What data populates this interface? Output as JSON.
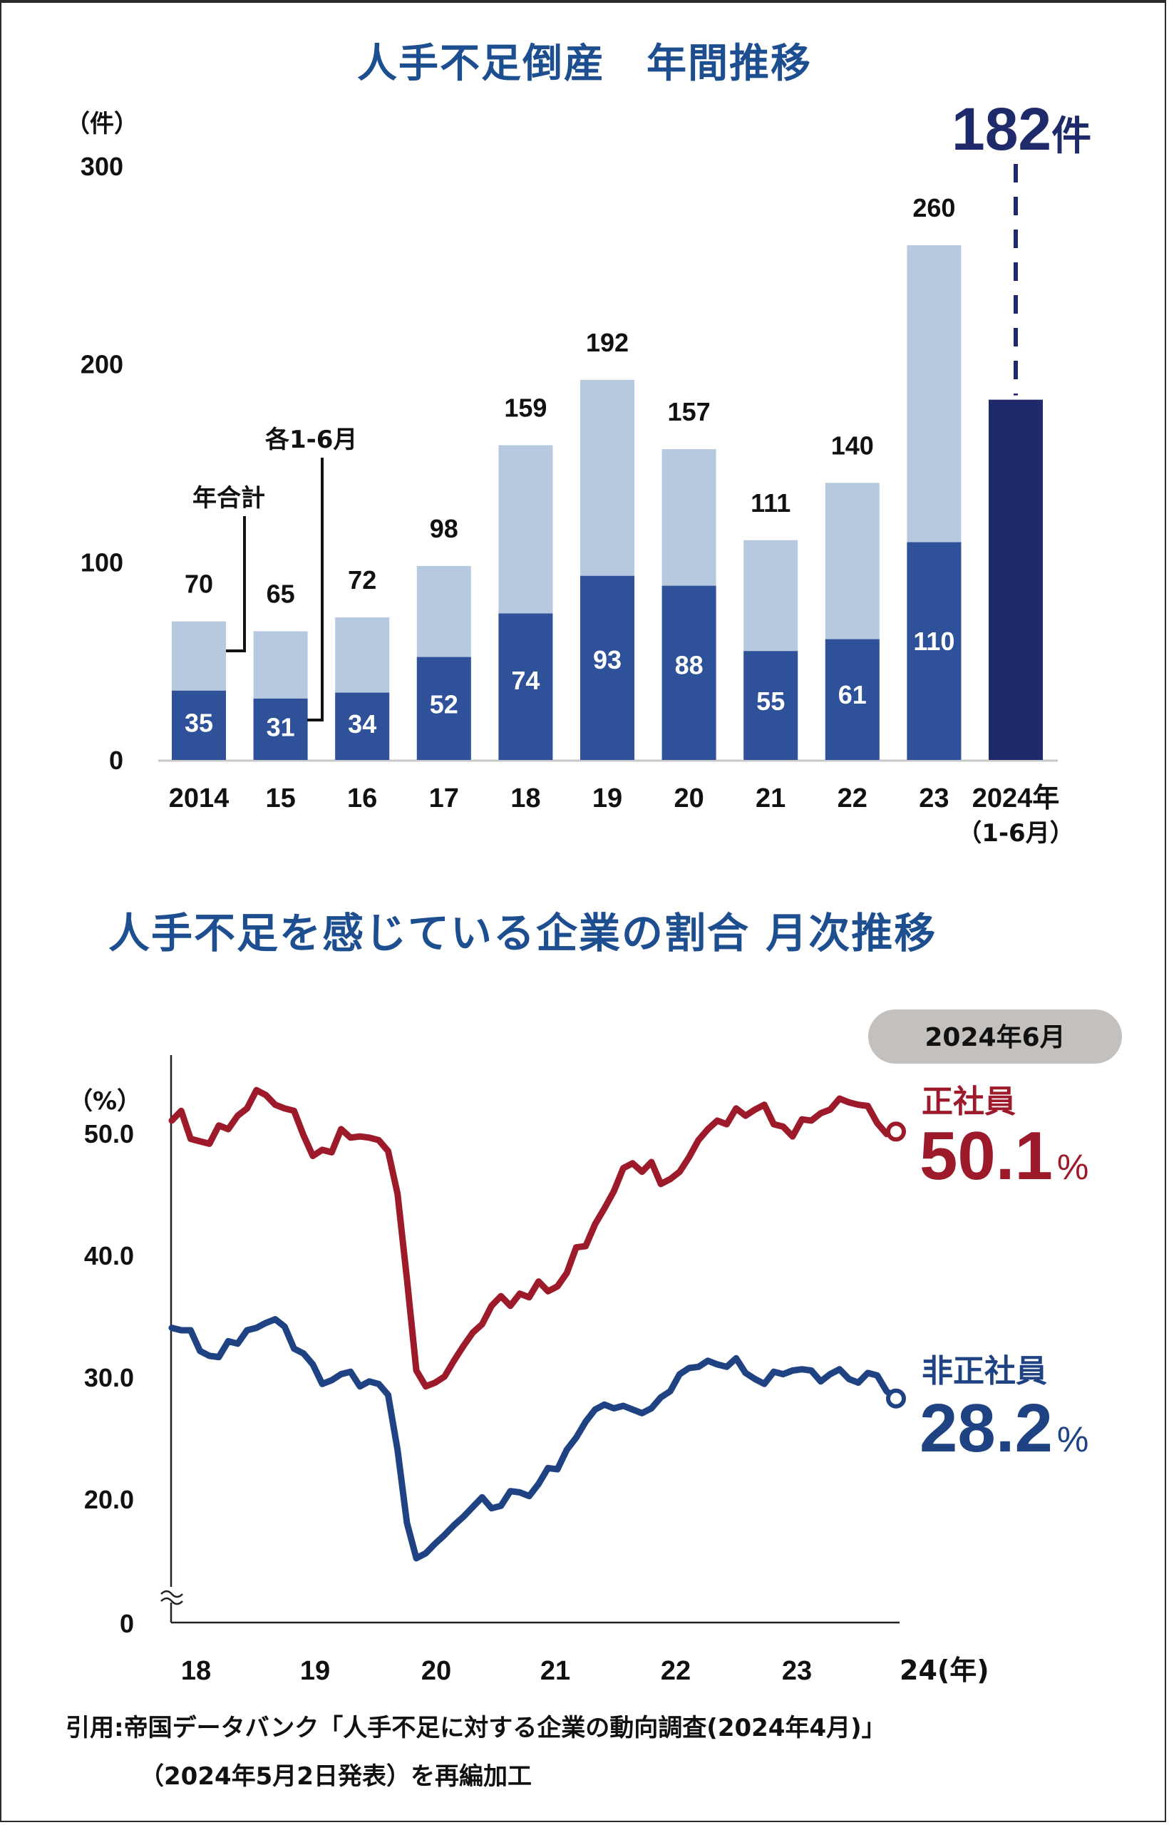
{
  "colors": {
    "title": "#1d4e8f",
    "bar_total": "#b7c9df",
    "bar_half": "#2e5199",
    "bar_highlight": "#1f2a6b",
    "line_regular": "#9c1a2a",
    "line_nonregular": "#1f4283",
    "badge_bg": "#c4c0bd"
  },
  "chart_data": [
    {
      "type": "bar",
      "title": "人手不足倒産　年間推移",
      "ylabel": "（件）",
      "ylim": [
        0,
        300
      ],
      "yticks": [
        "0",
        "100",
        "200",
        "300"
      ],
      "ytick_values": [
        0,
        100,
        200,
        300
      ],
      "grid": false,
      "categories": [
        "2014",
        "15",
        "16",
        "17",
        "18",
        "19",
        "20",
        "21",
        "22",
        "23",
        "2024年"
      ],
      "category_sublabels": [
        "",
        "",
        "",
        "",
        "",
        "",
        "",
        "",
        "",
        "",
        "（1-6月）"
      ],
      "series": [
        {
          "name": "年合計",
          "values": [
            70,
            65,
            72,
            98,
            159,
            192,
            157,
            111,
            140,
            260,
            null
          ]
        },
        {
          "name": "各1-6月",
          "values": [
            35,
            31,
            34,
            52,
            74,
            93,
            88,
            55,
            61,
            110,
            182
          ]
        }
      ],
      "total_labels": [
        "70",
        "65",
        "72",
        "98",
        "159",
        "192",
        "157",
        "111",
        "140",
        "260"
      ],
      "half_labels": [
        "35",
        "31",
        "34",
        "52",
        "74",
        "93",
        "88",
        "55",
        "61",
        "110"
      ],
      "annotations": {
        "annual_total": "年合計",
        "jan_jun": "各1-6月",
        "highlight_number": "182",
        "highlight_unit": "件"
      }
    },
    {
      "type": "line",
      "title": "人手不足を感じている企業の割合 月次推移",
      "ylabel": "（%）",
      "ylim": [
        0,
        55
      ],
      "axis_break": true,
      "yticks": [
        "0",
        "20.0",
        "30.0",
        "40.0",
        "50.0"
      ],
      "ytick_values": [
        0,
        20,
        30,
        40,
        50
      ],
      "xticks": [
        "18",
        "19",
        "20",
        "21",
        "22",
        "23",
        "24(年)"
      ],
      "xlabel": "年",
      "x_start": "2018-01",
      "x_end": "2024-06",
      "frequency": "monthly",
      "grid": false,
      "series": [
        {
          "name": "正社員",
          "final_value_label": "50.1",
          "unit": "%",
          "values": [
            51.0,
            51.8,
            49.5,
            49.3,
            49.1,
            50.6,
            50.3,
            51.4,
            52.0,
            53.5,
            53.1,
            52.3,
            52.0,
            51.8,
            49.8,
            48.1,
            48.6,
            48.4,
            50.3,
            49.6,
            49.7,
            49.6,
            49.4,
            48.5,
            45.0,
            38.0,
            30.5,
            29.2,
            29.5,
            30.0,
            31.3,
            32.5,
            33.6,
            34.3,
            35.8,
            36.6,
            35.8,
            36.8,
            36.5,
            37.8,
            37.0,
            37.4,
            38.5,
            40.6,
            40.7,
            42.5,
            43.8,
            45.2,
            47.1,
            47.5,
            46.8,
            47.6,
            45.8,
            46.2,
            46.8,
            48.0,
            49.4,
            50.3,
            51.0,
            50.7,
            52.0,
            51.4,
            51.9,
            52.3,
            50.7,
            50.5,
            49.7,
            51.1,
            51.0,
            51.6,
            51.9,
            52.8,
            52.5,
            52.3,
            52.2,
            50.8,
            49.9,
            50.1
          ]
        },
        {
          "name": "非正社員",
          "final_value_label": "28.2",
          "unit": "%",
          "values": [
            34.0,
            33.8,
            33.8,
            32.1,
            31.7,
            31.6,
            32.9,
            32.7,
            33.8,
            34.0,
            34.4,
            34.7,
            34.1,
            32.3,
            31.9,
            31.0,
            29.4,
            29.7,
            30.2,
            30.4,
            29.2,
            29.6,
            29.4,
            28.5,
            24.0,
            18.0,
            15.1,
            15.5,
            16.3,
            17.0,
            17.8,
            18.5,
            19.3,
            20.1,
            19.2,
            19.4,
            20.6,
            20.5,
            20.2,
            21.2,
            22.5,
            22.4,
            24.0,
            25.0,
            26.3,
            27.3,
            27.7,
            27.4,
            27.6,
            27.3,
            27.0,
            27.4,
            28.3,
            28.8,
            30.2,
            30.7,
            30.8,
            31.3,
            31.0,
            30.8,
            31.5,
            30.3,
            29.8,
            29.4,
            30.4,
            30.2,
            30.5,
            30.6,
            30.5,
            29.6,
            30.2,
            30.6,
            29.8,
            29.5,
            30.3,
            30.1,
            28.8,
            28.2
          ]
        }
      ],
      "badge": "2024年6月"
    }
  ],
  "footer": {
    "line1": "引用:帝国データバンク「人手不足に対する企業の動向調査(2024年4月)」",
    "line2": "（2024年5月2日発表）を再編加工"
  }
}
